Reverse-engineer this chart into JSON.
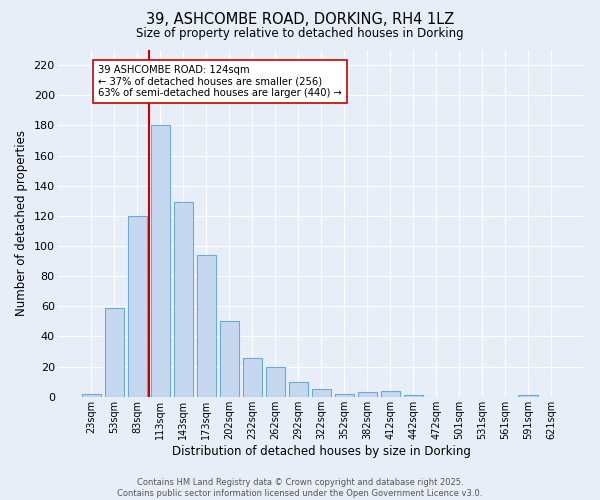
{
  "title1": "39, ASHCOMBE ROAD, DORKING, RH4 1LZ",
  "title2": "Size of property relative to detached houses in Dorking",
  "xlabel": "Distribution of detached houses by size in Dorking",
  "ylabel": "Number of detached properties",
  "bar_labels": [
    "23sqm",
    "53sqm",
    "83sqm",
    "113sqm",
    "143sqm",
    "173sqm",
    "202sqm",
    "232sqm",
    "262sqm",
    "292sqm",
    "322sqm",
    "352sqm",
    "382sqm",
    "412sqm",
    "442sqm",
    "472sqm",
    "501sqm",
    "531sqm",
    "561sqm",
    "591sqm",
    "621sqm"
  ],
  "bar_values": [
    2,
    59,
    120,
    180,
    129,
    94,
    50,
    26,
    20,
    10,
    5,
    2,
    3,
    4,
    1,
    0,
    0,
    0,
    0,
    1,
    0
  ],
  "bar_color": "#c5d8f0",
  "bar_edge_color": "#6aaad4",
  "background_color": "#e8eef8",
  "grid_color": "#ffffff",
  "vline_color": "#cc0000",
  "vline_pos": 3,
  "annotation_text": "39 ASHCOMBE ROAD: 124sqm\n← 37% of detached houses are smaller (256)\n63% of semi-detached houses are larger (440) →",
  "annotation_box_facecolor": "#ffffff",
  "annotation_box_edgecolor": "#cc0000",
  "ylim": [
    0,
    230
  ],
  "yticks": [
    0,
    20,
    40,
    60,
    80,
    100,
    120,
    140,
    160,
    180,
    200,
    220
  ],
  "footnote": "Contains HM Land Registry data © Crown copyright and database right 2025.\nContains public sector information licensed under the Open Government Licence v3.0."
}
